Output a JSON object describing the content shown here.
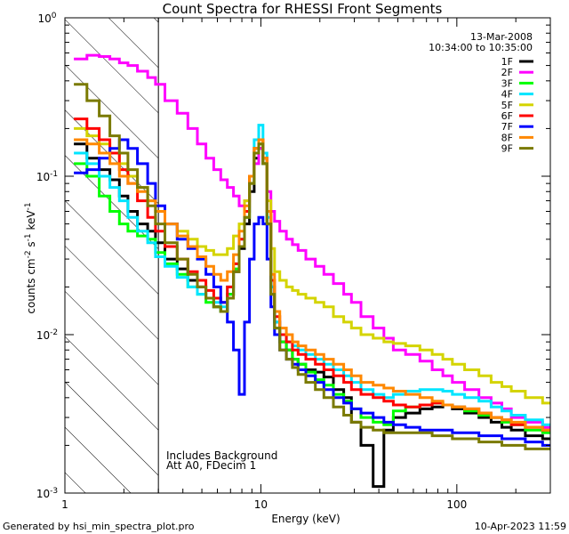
{
  "chart_data": {
    "type": "line",
    "title": "Count Spectra for RHESSI Front Segments",
    "xlabel": "Energy (keV)",
    "ylabel": {
      "base": "counts cm",
      "exp1": "-2",
      "mid": " s",
      "exp2": "-1",
      "tail": " keV",
      "exp3": "-1"
    },
    "xscale": "log",
    "yscale": "log",
    "xlim": [
      1,
      300
    ],
    "ylim": [
      0.001,
      1
    ],
    "xticks": [
      {
        "value": 1,
        "label": "1"
      },
      {
        "value": 10,
        "label": "10"
      },
      {
        "value": 100,
        "label": "100"
      }
    ],
    "yticks": [
      {
        "value": 1,
        "base": "10",
        "exp": "0"
      },
      {
        "value": 0.1,
        "base": "10",
        "exp": "-1"
      },
      {
        "value": 0.01,
        "base": "10",
        "exp": "-2"
      },
      {
        "value": 0.001,
        "base": "10",
        "exp": "-3"
      }
    ],
    "shaded_region": {
      "x_from": 1,
      "x_to": 3,
      "style": "diagonal hatch"
    },
    "legend_placement": "top-right",
    "date": "13-Mar-2008",
    "time_range": "10:34:00 to 10:35:00",
    "annotations": [
      "Includes Background",
      "Att A0, FDecim 1"
    ],
    "footer_left": "Generated by hsi_min_spectra_plot.pro",
    "footer_right": "10-Apr-2023 11:59",
    "x": [
      1.2,
      1.4,
      1.6,
      1.8,
      2.0,
      2.2,
      2.5,
      2.8,
      3.0,
      3.5,
      4,
      4.5,
      5,
      5.5,
      6,
      6.5,
      7,
      7.5,
      8,
      8.5,
      9,
      9.5,
      10,
      10.5,
      11,
      11.5,
      12,
      13,
      14,
      15,
      16,
      18,
      20,
      22,
      25,
      28,
      30,
      35,
      40,
      45,
      50,
      60,
      70,
      80,
      90,
      100,
      120,
      140,
      160,
      180,
      200,
      250,
      300
    ],
    "series": [
      {
        "name": "1F",
        "color": "#000000",
        "values": [
          0.16,
          0.13,
          0.11,
          0.095,
          0.075,
          0.06,
          0.05,
          0.045,
          0.038,
          0.03,
          0.026,
          0.022,
          0.02,
          0.017,
          0.015,
          0.014,
          0.018,
          0.025,
          0.035,
          0.05,
          0.08,
          0.13,
          0.15,
          0.12,
          0.05,
          0.02,
          0.012,
          0.009,
          0.008,
          0.007,
          0.0065,
          0.006,
          0.0058,
          0.0054,
          0.0045,
          0.004,
          0.0028,
          0.002,
          0.0011,
          0.0025,
          0.003,
          0.0032,
          0.0034,
          0.0035,
          0.0036,
          0.0034,
          0.0032,
          0.003,
          0.0028,
          0.0026,
          0.0025,
          0.0023,
          0.0022
        ]
      },
      {
        "name": "2F",
        "color": "#ff00ff",
        "values": [
          0.55,
          0.58,
          0.57,
          0.55,
          0.52,
          0.5,
          0.46,
          0.42,
          0.38,
          0.3,
          0.25,
          0.2,
          0.16,
          0.13,
          0.11,
          0.095,
          0.085,
          0.075,
          0.065,
          0.07,
          0.09,
          0.12,
          0.15,
          0.12,
          0.08,
          0.06,
          0.052,
          0.045,
          0.04,
          0.037,
          0.034,
          0.03,
          0.027,
          0.024,
          0.021,
          0.018,
          0.016,
          0.013,
          0.011,
          0.0095,
          0.008,
          0.0075,
          0.0068,
          0.006,
          0.0055,
          0.005,
          0.0045,
          0.004,
          0.0037,
          0.0034,
          0.003,
          0.0028,
          0.0026
        ]
      },
      {
        "name": "3F",
        "color": "#00ff00",
        "values": [
          0.12,
          0.1,
          0.075,
          0.06,
          0.05,
          0.045,
          0.042,
          0.04,
          0.033,
          0.028,
          0.024,
          0.02,
          0.018,
          0.016,
          0.015,
          0.014,
          0.018,
          0.026,
          0.036,
          0.055,
          0.09,
          0.14,
          0.16,
          0.12,
          0.05,
          0.018,
          0.011,
          0.009,
          0.008,
          0.007,
          0.0065,
          0.0058,
          0.0052,
          0.0048,
          0.0042,
          0.0038,
          0.0034,
          0.003,
          0.0028,
          0.0027,
          0.0033,
          0.0035,
          0.0036,
          0.0037,
          0.0036,
          0.0035,
          0.0033,
          0.0031,
          0.003,
          0.0028,
          0.0027,
          0.0025,
          0.0024
        ]
      },
      {
        "name": "4F",
        "color": "#00e5ff",
        "values": [
          0.14,
          0.12,
          0.1,
          0.085,
          0.07,
          0.055,
          0.045,
          0.038,
          0.031,
          0.027,
          0.023,
          0.02,
          0.018,
          0.017,
          0.016,
          0.015,
          0.02,
          0.028,
          0.04,
          0.06,
          0.1,
          0.17,
          0.21,
          0.14,
          0.055,
          0.02,
          0.012,
          0.01,
          0.009,
          0.0085,
          0.008,
          0.0075,
          0.007,
          0.0065,
          0.006,
          0.0055,
          0.005,
          0.0045,
          0.0042,
          0.004,
          0.0042,
          0.0044,
          0.0045,
          0.0045,
          0.0044,
          0.0042,
          0.004,
          0.0038,
          0.0035,
          0.0033,
          0.0031,
          0.0029,
          0.0027
        ]
      },
      {
        "name": "5F",
        "color": "#d4d400",
        "values": [
          0.2,
          0.18,
          0.16,
          0.14,
          0.12,
          0.1,
          0.085,
          0.07,
          0.06,
          0.05,
          0.045,
          0.04,
          0.036,
          0.034,
          0.032,
          0.032,
          0.035,
          0.042,
          0.05,
          0.07,
          0.1,
          0.15,
          0.17,
          0.13,
          0.07,
          0.035,
          0.025,
          0.022,
          0.02,
          0.019,
          0.018,
          0.017,
          0.016,
          0.015,
          0.013,
          0.012,
          0.011,
          0.01,
          0.0095,
          0.009,
          0.0088,
          0.0085,
          0.008,
          0.0075,
          0.007,
          0.0065,
          0.006,
          0.0055,
          0.005,
          0.0047,
          0.0044,
          0.004,
          0.0037
        ]
      },
      {
        "name": "6F",
        "color": "#ff0000",
        "values": [
          0.23,
          0.2,
          0.17,
          0.14,
          0.11,
          0.09,
          0.07,
          0.055,
          0.045,
          0.036,
          0.03,
          0.025,
          0.022,
          0.019,
          0.017,
          0.016,
          0.02,
          0.028,
          0.04,
          0.06,
          0.1,
          0.15,
          0.17,
          0.13,
          0.06,
          0.022,
          0.013,
          0.01,
          0.009,
          0.008,
          0.0075,
          0.007,
          0.0065,
          0.006,
          0.0055,
          0.005,
          0.0045,
          0.0042,
          0.004,
          0.0038,
          0.0036,
          0.0035,
          0.0036,
          0.0037,
          0.0036,
          0.0035,
          0.0034,
          0.0032,
          0.003,
          0.0029,
          0.0027,
          0.0026,
          0.0025
        ]
      },
      {
        "name": "7F",
        "color": "#0000ff",
        "values": [
          0.105,
          0.11,
          0.13,
          0.15,
          0.17,
          0.15,
          0.12,
          0.09,
          0.065,
          0.05,
          0.04,
          0.035,
          0.03,
          0.024,
          0.02,
          0.016,
          0.012,
          0.008,
          0.0042,
          0.012,
          0.03,
          0.05,
          0.055,
          0.05,
          0.03,
          0.015,
          0.01,
          0.008,
          0.007,
          0.0065,
          0.006,
          0.0055,
          0.005,
          0.0045,
          0.004,
          0.0037,
          0.0034,
          0.0032,
          0.003,
          0.0028,
          0.0027,
          0.0026,
          0.0025,
          0.0025,
          0.0025,
          0.0024,
          0.0024,
          0.0023,
          0.0023,
          0.0022,
          0.0022,
          0.0021,
          0.002
        ]
      },
      {
        "name": "8F",
        "color": "#ff8800",
        "values": [
          0.17,
          0.16,
          0.14,
          0.12,
          0.1,
          0.09,
          0.08,
          0.07,
          0.06,
          0.05,
          0.042,
          0.036,
          0.031,
          0.027,
          0.024,
          0.022,
          0.025,
          0.032,
          0.045,
          0.065,
          0.1,
          0.15,
          0.17,
          0.13,
          0.06,
          0.024,
          0.014,
          0.011,
          0.01,
          0.009,
          0.0085,
          0.008,
          0.0075,
          0.007,
          0.0065,
          0.006,
          0.0055,
          0.005,
          0.0048,
          0.0046,
          0.0044,
          0.0042,
          0.004,
          0.0038,
          0.0036,
          0.0035,
          0.0034,
          0.0032,
          0.003,
          0.0029,
          0.0028,
          0.0026,
          0.0025
        ]
      },
      {
        "name": "9F",
        "color": "#7a7a00",
        "values": [
          0.38,
          0.3,
          0.24,
          0.18,
          0.14,
          0.11,
          0.085,
          0.065,
          0.05,
          0.038,
          0.03,
          0.024,
          0.02,
          0.017,
          0.015,
          0.014,
          0.017,
          0.025,
          0.036,
          0.055,
          0.09,
          0.14,
          0.16,
          0.12,
          0.05,
          0.018,
          0.011,
          0.008,
          0.007,
          0.0062,
          0.0056,
          0.005,
          0.0045,
          0.004,
          0.0035,
          0.0031,
          0.0028,
          0.0026,
          0.0025,
          0.0024,
          0.0024,
          0.0024,
          0.0024,
          0.0023,
          0.0023,
          0.0022,
          0.0022,
          0.0021,
          0.0021,
          0.002,
          0.002,
          0.0019,
          0.0019
        ]
      }
    ]
  }
}
